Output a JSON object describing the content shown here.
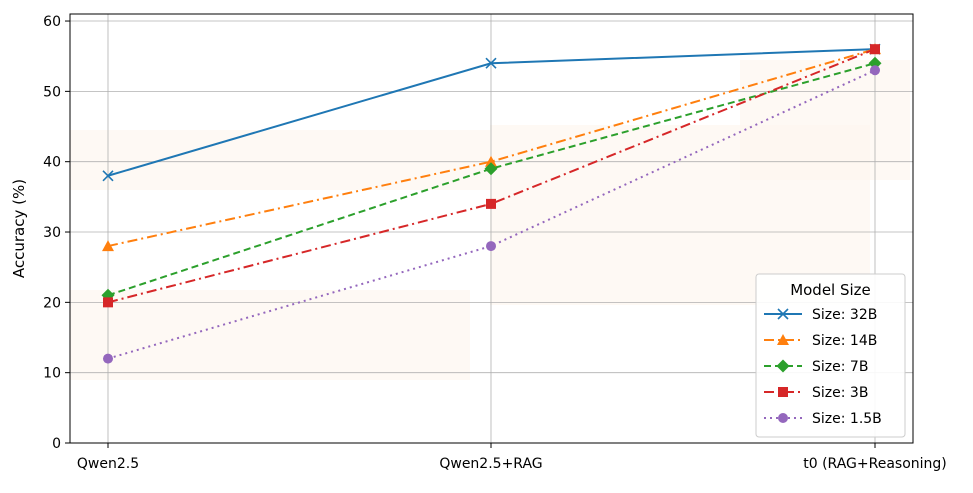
{
  "chart_data": {
    "type": "line",
    "title": "",
    "xlabel": "",
    "ylabel": "Accuracy (%)",
    "categories": [
      "Qwen2.5",
      "Qwen2.5+RAG",
      "t0 (RAG+Reasoning)"
    ],
    "ylim": [
      0,
      61
    ],
    "yticks": [
      0,
      10,
      20,
      30,
      40,
      50,
      60
    ],
    "grid": true,
    "legend": {
      "title": "Model Size",
      "placement": "bottom-right"
    },
    "series": [
      {
        "name": "Size: 32B",
        "values": [
          38,
          54,
          56
        ],
        "color": "#1f77b4",
        "marker": "x",
        "dash": "solid"
      },
      {
        "name": "Size: 14B",
        "values": [
          28,
          40,
          56
        ],
        "color": "#ff7f0e",
        "marker": "triangle",
        "dash": "dashdot"
      },
      {
        "name": "Size: 7B",
        "values": [
          21,
          39,
          54
        ],
        "color": "#2ca02c",
        "marker": "diamond",
        "dash": "dashed"
      },
      {
        "name": "Size: 3B",
        "values": [
          20,
          34,
          56
        ],
        "color": "#d62728",
        "marker": "square",
        "dash": "dashdot"
      },
      {
        "name": "Size: 1.5B",
        "values": [
          12,
          28,
          53
        ],
        "color": "#9467bd",
        "marker": "circle",
        "dash": "dotted"
      }
    ]
  }
}
